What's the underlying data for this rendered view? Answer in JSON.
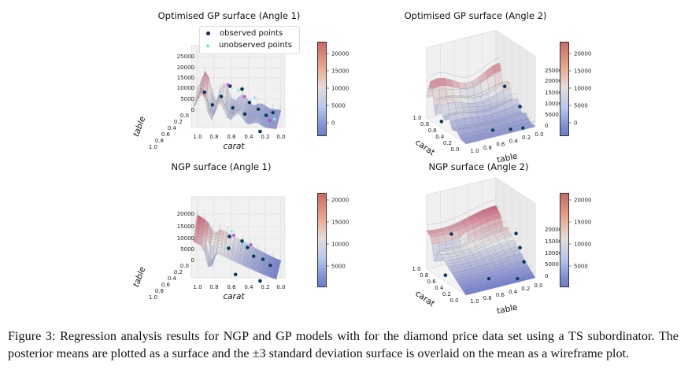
{
  "figure": {
    "caption": "Figure 3: Regression analysis results for NGP and GP models with for the diamond price data set using a TS subordinator. The posterior means are plotted as a surface and the ±3 standard deviation surface is overlaid on the mean as a wireframe plot."
  },
  "chart_data": [
    {
      "type": "surface3d",
      "title": "Optimised GP surface (Angle 1)",
      "model": "gp",
      "view": "angle1",
      "xlabel": "carat",
      "ylabel": "table",
      "x_ticks": [
        "1.0",
        "0.8",
        "0.6",
        "0.4",
        "0.2",
        "0.0"
      ],
      "y_ticks": [
        "0.0",
        "0.2",
        "0.4",
        "0.6",
        "0.8",
        "1.0"
      ],
      "z_ticks": [
        "0",
        "5000",
        "10000",
        "15000",
        "20000",
        "25000"
      ],
      "colorbar_ticks": [
        "0",
        "5000",
        "10000",
        "15000",
        "20000"
      ],
      "colorbar_range": [
        -3000,
        22500
      ],
      "legend": [
        "observed points",
        "unobserved points"
      ],
      "observed_points": [
        [
          0.9,
          0.3,
          11000
        ],
        [
          0.8,
          0.4,
          6000
        ],
        [
          0.7,
          0.3,
          9000
        ],
        [
          0.55,
          0.5,
          5500
        ],
        [
          0.45,
          0.3,
          12500
        ],
        [
          0.35,
          0.5,
          8000
        ],
        [
          0.25,
          0.4,
          4000
        ],
        [
          0.15,
          0.5,
          2000
        ],
        [
          0.2,
          0.9,
          -2000
        ],
        [
          0.08,
          0.3,
          1500
        ],
        [
          0.6,
          0.2,
          13000
        ],
        [
          0.4,
          0.6,
          3500
        ]
      ],
      "unobserved_points": [
        [
          0.5,
          0.2,
          11000
        ],
        [
          0.42,
          0.3,
          9000
        ],
        [
          0.3,
          0.2,
          7500
        ],
        [
          0.1,
          0.6,
          500
        ],
        [
          0.05,
          0.5,
          200
        ],
        [
          0.62,
          0.3,
          14500
        ]
      ]
    },
    {
      "type": "surface3d",
      "title": "Optimised GP surface (Angle 2)",
      "model": "gp",
      "view": "angle2",
      "xlabel": "carat",
      "ylabel": "table",
      "x_ticks": [
        "1.0",
        "0.8",
        "0.6",
        "0.4",
        "0.2",
        "0.0"
      ],
      "y_ticks": [
        "1.0",
        "0.8",
        "0.6",
        "0.4",
        "0.2",
        "0.0"
      ],
      "z_ticks": [
        "0",
        "5000",
        "10000",
        "15000",
        "20000",
        "25000"
      ],
      "colorbar_ticks": [
        "0",
        "5000",
        "10000",
        "15000",
        "20000"
      ],
      "colorbar_range": [
        -3000,
        22500
      ],
      "observed_points": [
        [
          0.6,
          0.1,
          12000
        ],
        [
          0.3,
          0.05,
          6000
        ],
        [
          0.8,
          0.9,
          0
        ],
        [
          0.2,
          0.5,
          0
        ],
        [
          0.1,
          0.3,
          0
        ],
        [
          0.05,
          0.15,
          0
        ]
      ]
    },
    {
      "type": "surface3d",
      "title": "NGP surface (Angle 1)",
      "model": "ngp",
      "view": "angle1",
      "xlabel": "carat",
      "ylabel": "table",
      "x_ticks": [
        "1.0",
        "0.8",
        "0.6",
        "0.4",
        "0.2",
        "0.0"
      ],
      "y_ticks": [
        "0.0",
        "0.2",
        "0.4",
        "0.6",
        "0.8",
        "1.0"
      ],
      "z_ticks": [
        "0",
        "5000",
        "10000",
        "15000",
        "20000"
      ],
      "colorbar_ticks": [
        "5000",
        "10000",
        "15000",
        "20000"
      ],
      "colorbar_range": [
        0,
        21500
      ],
      "observed_points": [
        [
          0.6,
          0.3,
          13000
        ],
        [
          0.45,
          0.3,
          11000
        ],
        [
          0.38,
          0.4,
          9000
        ],
        [
          0.3,
          0.5,
          6000
        ],
        [
          0.2,
          0.3,
          3000
        ],
        [
          0.1,
          0.5,
          2000
        ],
        [
          0.5,
          0.8,
          500
        ],
        [
          0.2,
          0.9,
          -1500
        ],
        [
          0.6,
          0.5,
          9500
        ]
      ],
      "unobserved_points": [
        [
          0.58,
          0.2,
          14500
        ],
        [
          0.55,
          0.3,
          13500
        ],
        [
          0.4,
          0.3,
          10000
        ],
        [
          0.35,
          0.2,
          8500
        ]
      ]
    },
    {
      "type": "surface3d",
      "title": "NGP surface (Angle 2)",
      "model": "ngp",
      "view": "angle2",
      "xlabel": "carat",
      "ylabel": "table",
      "x_ticks": [
        "1.0",
        "0.8",
        "0.6",
        "0.4",
        "0.2",
        "0.0"
      ],
      "y_ticks": [
        "1.0",
        "0.8",
        "0.6",
        "0.4",
        "0.2",
        "0.0"
      ],
      "z_ticks": [
        "0",
        "5000",
        "10000",
        "15000",
        "20000"
      ],
      "colorbar_ticks": [
        "5000",
        "10000",
        "15000",
        "20000"
      ],
      "colorbar_range": [
        0,
        21500
      ],
      "observed_points": [
        [
          0.9,
          0.7,
          14000
        ],
        [
          0.4,
          0.05,
          15000
        ],
        [
          0.3,
          0.05,
          10000
        ],
        [
          0.2,
          0.05,
          5000
        ],
        [
          0.7,
          0.9,
          0
        ],
        [
          0.3,
          0.5,
          0
        ],
        [
          0.1,
          0.2,
          0
        ]
      ]
    }
  ]
}
